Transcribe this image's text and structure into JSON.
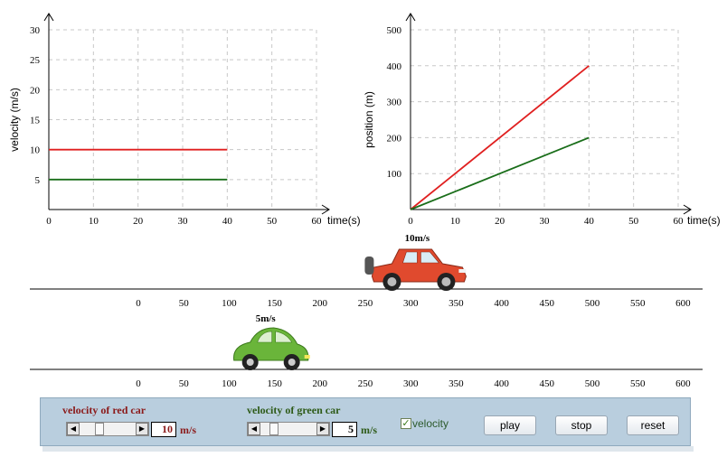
{
  "chart_data": [
    {
      "type": "line",
      "xlabel": "time(s)",
      "ylabel": "velocity (m/s)",
      "xlim": [
        0,
        60
      ],
      "ylim": [
        0,
        30
      ],
      "xticks": [
        0,
        10,
        20,
        30,
        40,
        50,
        60
      ],
      "yticks": [
        5,
        10,
        15,
        20,
        25,
        30
      ],
      "grid": true,
      "series": [
        {
          "color": "#e02020",
          "x": [
            0,
            40
          ],
          "y": [
            10,
            10
          ]
        },
        {
          "color": "#1a6e1a",
          "x": [
            0,
            40
          ],
          "y": [
            5,
            5
          ]
        }
      ]
    },
    {
      "type": "line",
      "xlabel": "time(s)",
      "ylabel": "position (m)",
      "xlim": [
        0,
        60
      ],
      "ylim": [
        0,
        500
      ],
      "xticks": [
        0,
        10,
        20,
        30,
        40,
        50,
        60
      ],
      "yticks": [
        100,
        200,
        300,
        400,
        500
      ],
      "grid": true,
      "series": [
        {
          "color": "#e02020",
          "x": [
            0,
            40
          ],
          "y": [
            0,
            400
          ]
        },
        {
          "color": "#1a6e1a",
          "x": [
            0,
            40
          ],
          "y": [
            0,
            200
          ]
        }
      ]
    }
  ],
  "tracks": {
    "ticks": [
      0,
      50,
      100,
      150,
      200,
      250,
      300,
      350,
      400,
      450,
      500,
      550,
      600
    ],
    "red_car": {
      "label": "10m/s",
      "position": 355,
      "color": "#e04a2e"
    },
    "green_car": {
      "label": "5m/s",
      "position": 175,
      "color": "#6ab53a"
    }
  },
  "controls": {
    "red_label": "velocity of red car",
    "red_value": "10",
    "red_unit": "m/s",
    "red_fraction": 0.33,
    "green_label": "velocity of green car",
    "green_value": "5",
    "green_unit": "m/s",
    "green_fraction": 0.2,
    "velocity_label": "velocity",
    "velocity_checked": true,
    "play_label": "play",
    "stop_label": "stop",
    "reset_label": "reset"
  },
  "colors": {
    "red_label": "#8b1a1a",
    "green_label": "#2d5a17"
  }
}
